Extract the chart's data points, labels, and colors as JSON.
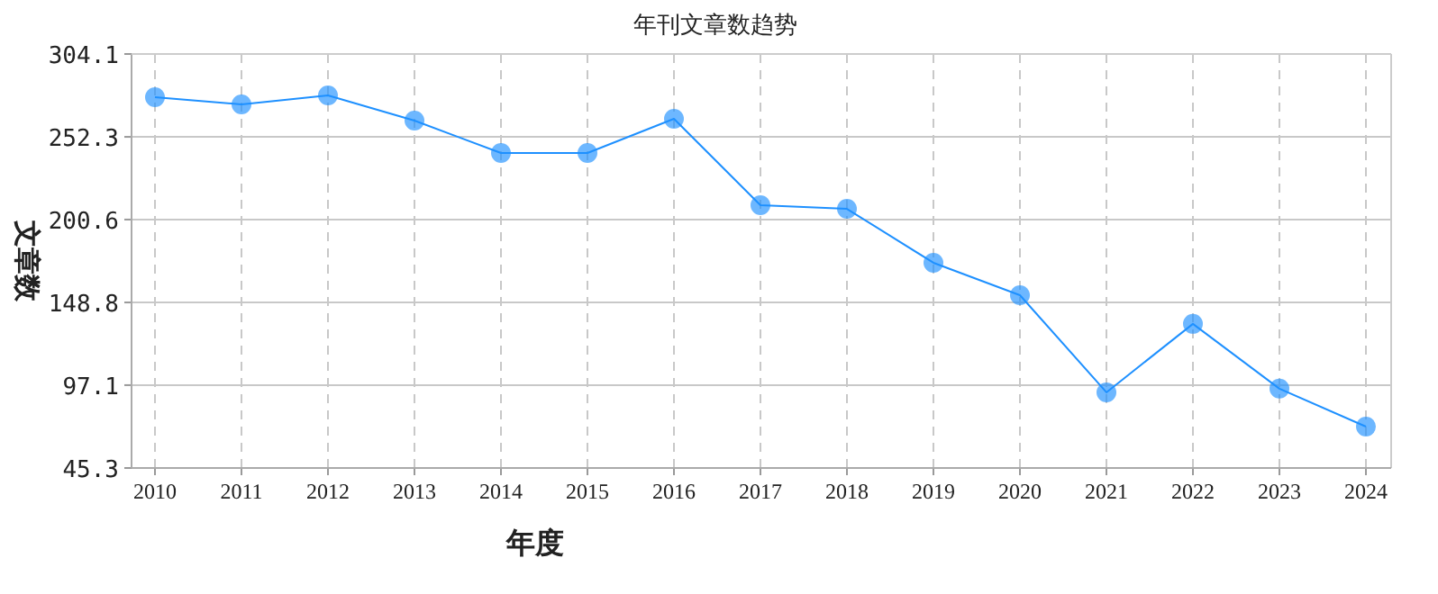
{
  "chart_data": {
    "type": "line",
    "title": "年刊文章数趋势",
    "xlabel": "年度",
    "ylabel": "文章数",
    "categories": [
      "2010",
      "2011",
      "2012",
      "2013",
      "2014",
      "2015",
      "2016",
      "2017",
      "2018",
      "2019",
      "2020",
      "2021",
      "2022",
      "2023",
      "2024"
    ],
    "series": [
      {
        "color": "#1e90ff",
        "values": [
          277.1,
          272.6,
          278.2,
          262.5,
          242.2,
          242.2,
          263.6,
          209.6,
          207.3,
          173.6,
          153.3,
          92.6,
          135.4,
          94.9,
          71.2
        ]
      }
    ],
    "ylim": [
      45.3,
      304.1
    ],
    "yticks": [
      {
        "value": 45.3,
        "label": "45.3"
      },
      {
        "value": 97.1,
        "label": "97.1"
      },
      {
        "value": 148.8,
        "label": "148.8"
      },
      {
        "value": 200.6,
        "label": "200.6"
      },
      {
        "value": 252.3,
        "label": "252.3"
      },
      {
        "value": 304.1,
        "label": "304.1"
      }
    ],
    "grid": true,
    "marker": "circle",
    "line_style": "solid"
  }
}
